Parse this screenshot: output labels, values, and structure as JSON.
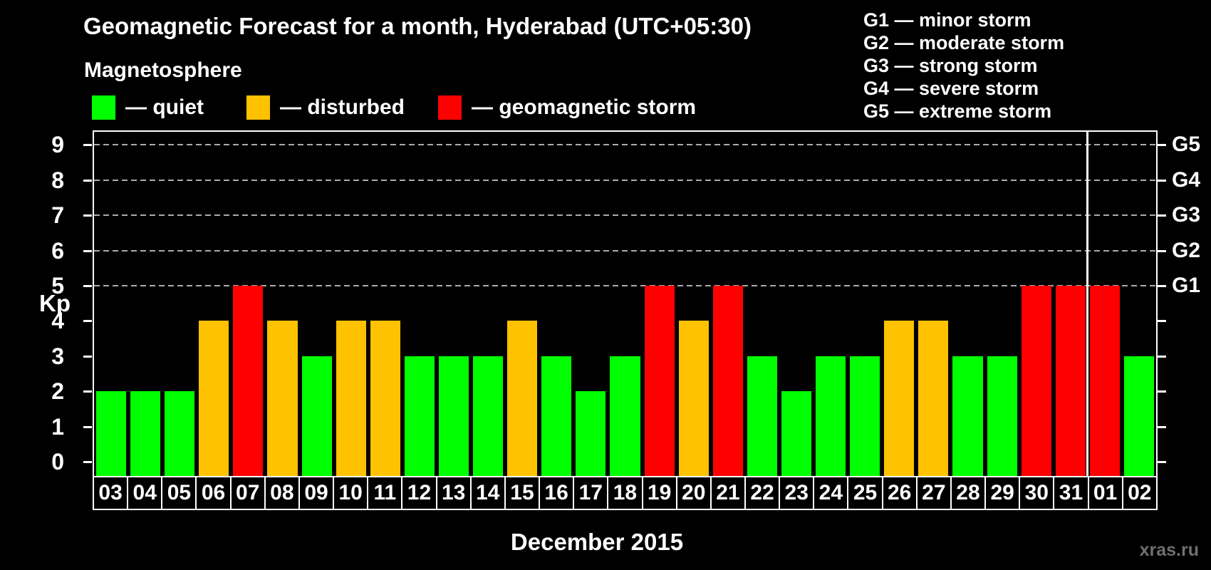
{
  "header": {
    "title": "Geomagnetic Forecast for a month, Hyderabad (UTC+05:30)",
    "subtitle": "Magnetosphere"
  },
  "legend": {
    "items": [
      {
        "status": "quiet",
        "label": "— quiet",
        "color": "#00FF00"
      },
      {
        "status": "disturbed",
        "label": "— disturbed",
        "color": "#FFC200"
      },
      {
        "status": "storm",
        "label": "— geomagnetic storm",
        "color": "#FF0000"
      }
    ]
  },
  "storm_scale_legend": {
    "items": [
      "G1 — minor storm",
      "G2 — moderate storm",
      "G3 — strong storm",
      "G4 — severe storm",
      "G5 — extreme storm"
    ]
  },
  "chart_data": {
    "type": "bar",
    "title": "Geomagnetic Forecast for a month, Hyderabad (UTC+05:30)",
    "xlabel": "December 2015",
    "ylabel": "Kp",
    "ylim": [
      0,
      9
    ],
    "yticks": [
      0,
      1,
      2,
      3,
      4,
      5,
      6,
      7,
      8,
      9
    ],
    "grid_levels": [
      5,
      6,
      7,
      8,
      9
    ],
    "grid_on": true,
    "legend_position": "top-left",
    "right_axis": {
      "labels": [
        {
          "value": 5,
          "label": "G1"
        },
        {
          "value": 6,
          "label": "G2"
        },
        {
          "value": 7,
          "label": "G3"
        },
        {
          "value": 8,
          "label": "G4"
        },
        {
          "value": 9,
          "label": "G5"
        }
      ]
    },
    "categories": [
      "03",
      "04",
      "05",
      "06",
      "07",
      "08",
      "09",
      "10",
      "11",
      "12",
      "13",
      "14",
      "15",
      "16",
      "17",
      "18",
      "19",
      "20",
      "21",
      "22",
      "23",
      "24",
      "25",
      "26",
      "27",
      "28",
      "29",
      "30",
      "31",
      "01",
      "02"
    ],
    "values": [
      2,
      2,
      2,
      4,
      5,
      4,
      3,
      4,
      4,
      3,
      3,
      3,
      4,
      3,
      2,
      3,
      5,
      4,
      5,
      3,
      2,
      3,
      3,
      4,
      4,
      3,
      3,
      5,
      5,
      5,
      3
    ],
    "statuses": [
      "quiet",
      "quiet",
      "quiet",
      "disturbed",
      "storm",
      "disturbed",
      "quiet",
      "disturbed",
      "disturbed",
      "quiet",
      "quiet",
      "quiet",
      "disturbed",
      "quiet",
      "quiet",
      "quiet",
      "storm",
      "disturbed",
      "storm",
      "quiet",
      "quiet",
      "quiet",
      "quiet",
      "disturbed",
      "disturbed",
      "quiet",
      "quiet",
      "storm",
      "storm",
      "storm",
      "quiet"
    ],
    "colors": {
      "quiet": "#00FF00",
      "disturbed": "#FFC200",
      "storm": "#FF0000"
    },
    "month_separator_index": 29
  },
  "footer": {
    "month_label": "December 2015",
    "watermark": "xras.ru"
  }
}
